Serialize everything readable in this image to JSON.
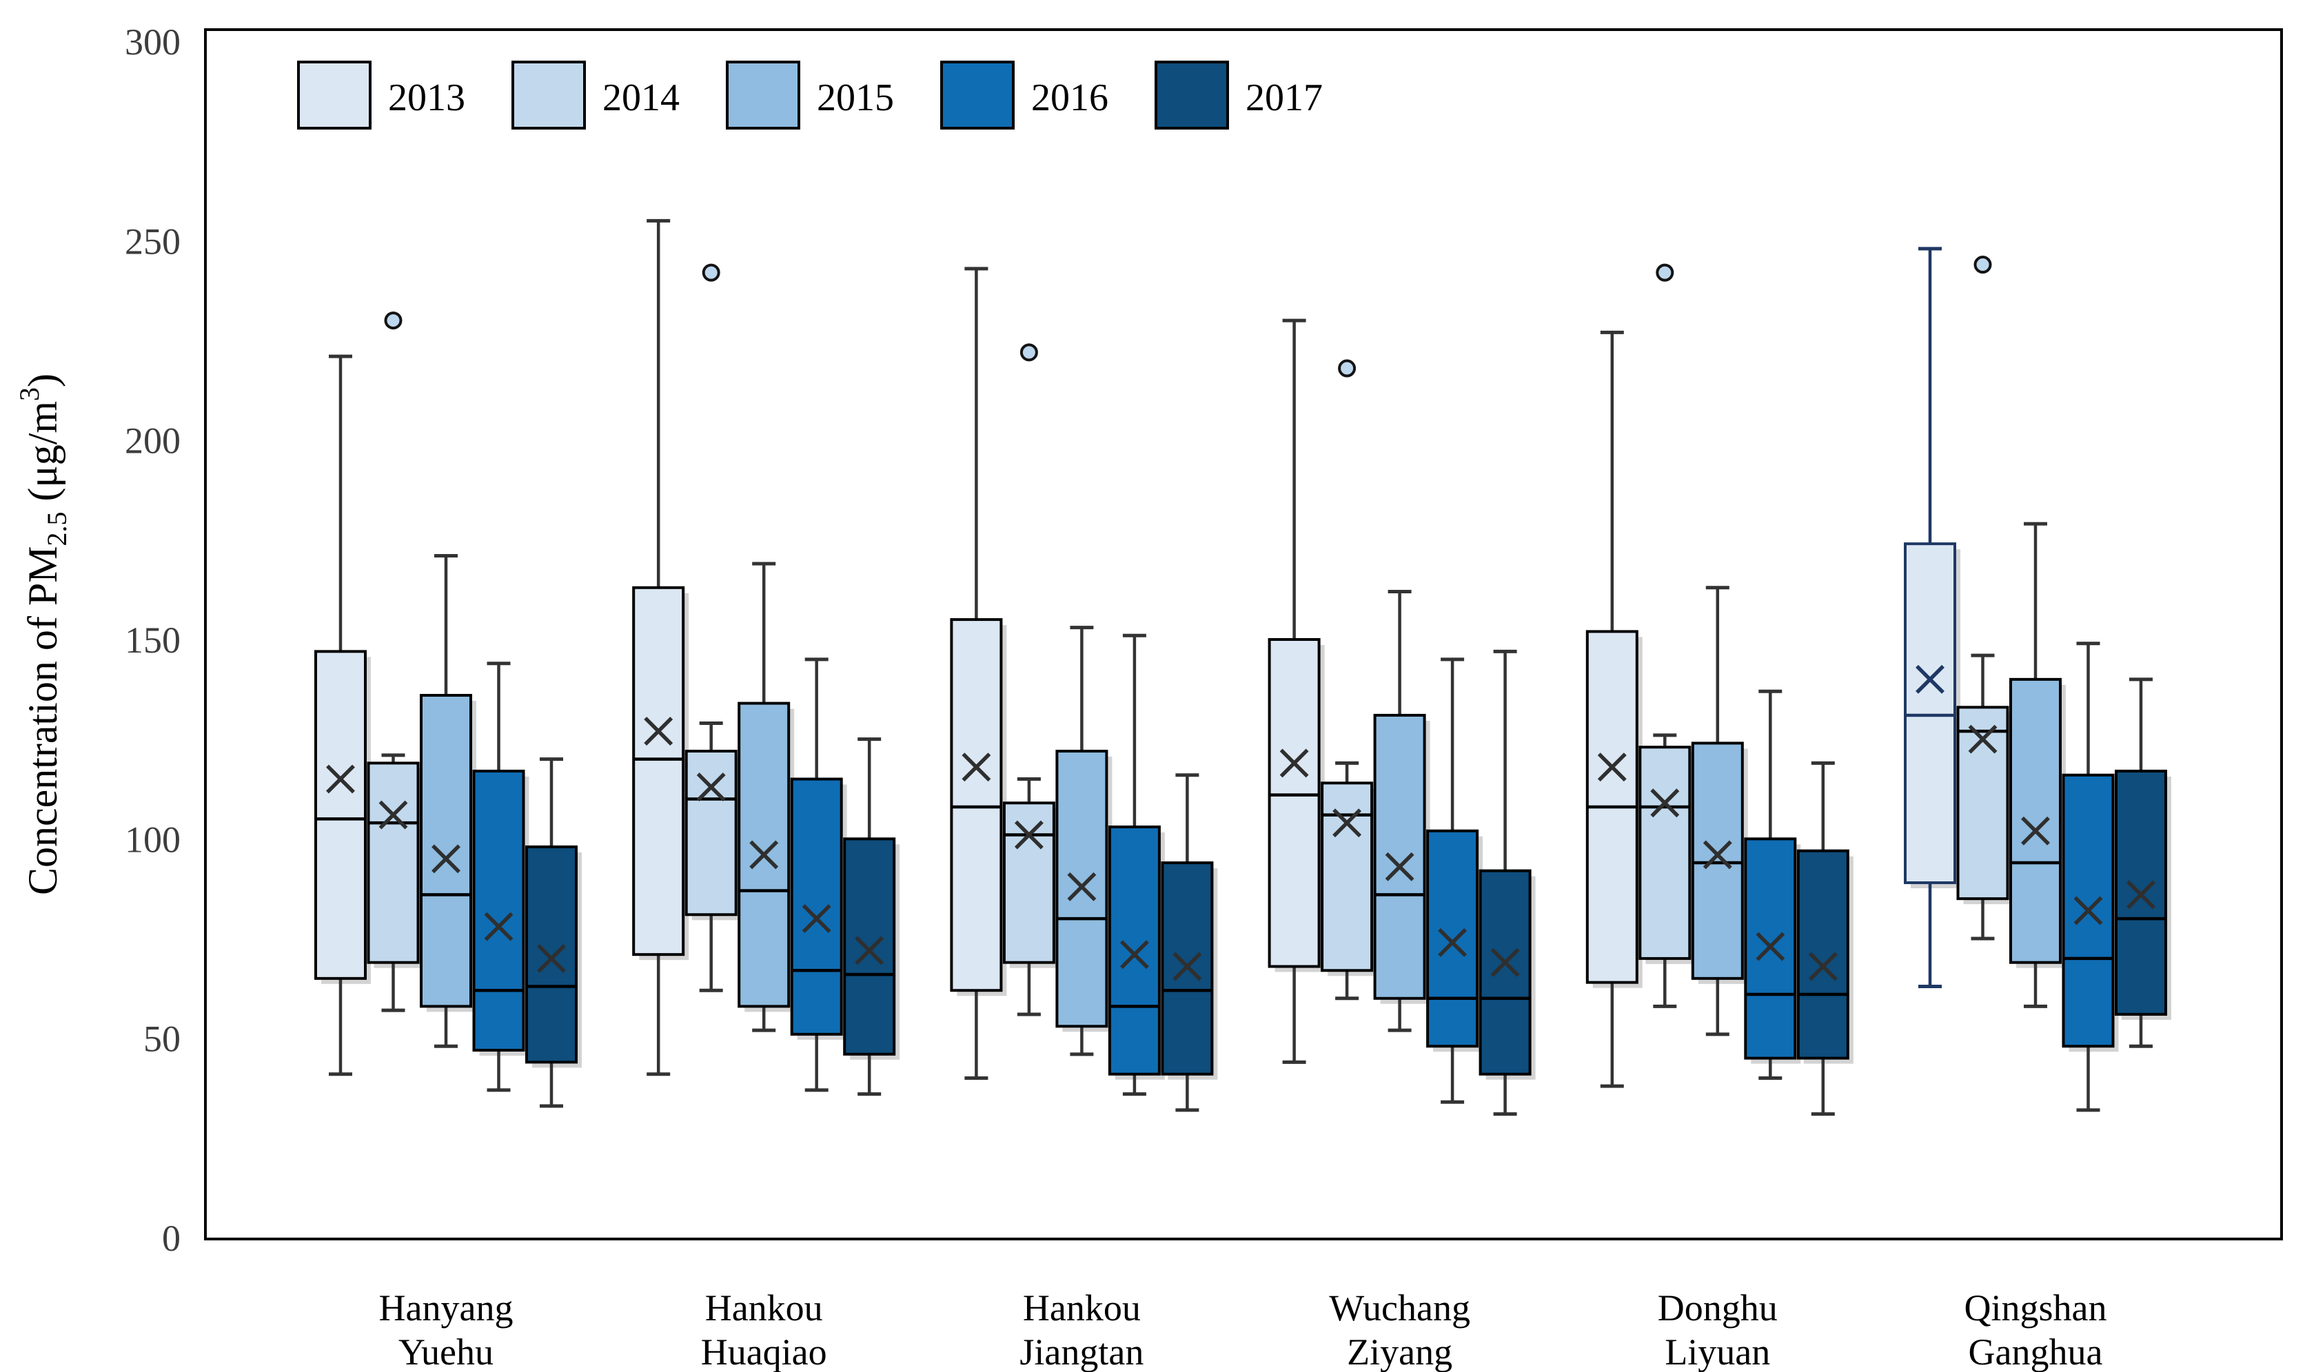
{
  "chart_data": {
    "type": "boxplot",
    "title": "",
    "ylabel": "Concentration of PM2.5 (μg/m³)",
    "ylabel_parts": {
      "prefix": "Concentration of PM",
      "sub": "2.5",
      "mid": " (μg/m",
      "sup": "3",
      "suffix": ")"
    },
    "ylim": [
      0,
      300
    ],
    "yticks": [
      0,
      50,
      100,
      150,
      200,
      250,
      300
    ],
    "grid": false,
    "frame": true,
    "legend_position": "top-left",
    "categories": [
      "Hanyang Yuehu",
      "Hankou Huaqiao",
      "Hankou Jiangtan",
      "Wuchang Ziyang",
      "Donghu Liyuan",
      "Qingshan Ganghua"
    ],
    "categories_lines": [
      [
        "Hanyang",
        "Yuehu"
      ],
      [
        "Hankou",
        "Huaqiao"
      ],
      [
        "Hankou",
        "Jiangtan"
      ],
      [
        "Wuchang",
        "Ziyang"
      ],
      [
        "Donghu",
        "Liyuan"
      ],
      [
        "Qingshan",
        "Ganghua"
      ]
    ],
    "series": [
      {
        "name": "2013",
        "color": "#dbe7f3",
        "boxes": [
          {
            "min": 41,
            "q1": 65,
            "median": 105,
            "q3": 147,
            "max": 221,
            "mean": 115,
            "outliers": []
          },
          {
            "min": 41,
            "q1": 71,
            "median": 120,
            "q3": 163,
            "max": 255,
            "mean": 127,
            "outliers": []
          },
          {
            "min": 40,
            "q1": 62,
            "median": 108,
            "q3": 155,
            "max": 243,
            "mean": 118,
            "outliers": []
          },
          {
            "min": 44,
            "q1": 68,
            "median": 111,
            "q3": 150,
            "max": 230,
            "mean": 119,
            "outliers": []
          },
          {
            "min": 38,
            "q1": 64,
            "median": 108,
            "q3": 152,
            "max": 227,
            "mean": 118,
            "outliers": []
          },
          {
            "min": 63,
            "q1": 89,
            "median": 131,
            "q3": 174,
            "max": 248,
            "mean": 140,
            "outliers": [],
            "stroke": "#1f3864"
          }
        ]
      },
      {
        "name": "2014",
        "color": "#c2d9ed",
        "boxes": [
          {
            "min": 57,
            "q1": 69,
            "median": 104,
            "q3": 119,
            "max": 121,
            "mean": 106,
            "outliers": [
              230
            ]
          },
          {
            "min": 62,
            "q1": 81,
            "median": 110,
            "q3": 122,
            "max": 129,
            "mean": 113,
            "outliers": [
              242
            ]
          },
          {
            "min": 56,
            "q1": 69,
            "median": 101,
            "q3": 109,
            "max": 115,
            "mean": 101,
            "outliers": [
              222
            ]
          },
          {
            "min": 60,
            "q1": 67,
            "median": 106,
            "q3": 114,
            "max": 119,
            "mean": 104,
            "outliers": [
              218
            ]
          },
          {
            "min": 58,
            "q1": 70,
            "median": 108,
            "q3": 123,
            "max": 126,
            "mean": 109,
            "outliers": [
              242
            ]
          },
          {
            "min": 75,
            "q1": 85,
            "median": 127,
            "q3": 133,
            "max": 146,
            "mean": 125,
            "outliers": [
              244
            ]
          }
        ]
      },
      {
        "name": "2015",
        "color": "#8fbce0",
        "boxes": [
          {
            "min": 48,
            "q1": 58,
            "median": 86,
            "q3": 136,
            "max": 171,
            "mean": 95,
            "outliers": []
          },
          {
            "min": 52,
            "q1": 58,
            "median": 87,
            "q3": 134,
            "max": 169,
            "mean": 96,
            "outliers": []
          },
          {
            "min": 46,
            "q1": 53,
            "median": 80,
            "q3": 122,
            "max": 153,
            "mean": 88,
            "outliers": []
          },
          {
            "min": 52,
            "q1": 60,
            "median": 86,
            "q3": 131,
            "max": 162,
            "mean": 93,
            "outliers": []
          },
          {
            "min": 51,
            "q1": 65,
            "median": 94,
            "q3": 124,
            "max": 163,
            "mean": 96,
            "outliers": []
          },
          {
            "min": 58,
            "q1": 69,
            "median": 94,
            "q3": 140,
            "max": 179,
            "mean": 102,
            "outliers": []
          }
        ]
      },
      {
        "name": "2016",
        "color": "#0f6db4",
        "boxes": [
          {
            "min": 37,
            "q1": 47,
            "median": 62,
            "q3": 117,
            "max": 144,
            "mean": 78,
            "outliers": []
          },
          {
            "min": 37,
            "q1": 51,
            "median": 67,
            "q3": 115,
            "max": 145,
            "mean": 80,
            "outliers": []
          },
          {
            "min": 36,
            "q1": 41,
            "median": 58,
            "q3": 103,
            "max": 151,
            "mean": 71,
            "outliers": []
          },
          {
            "min": 34,
            "q1": 48,
            "median": 60,
            "q3": 102,
            "max": 145,
            "mean": 74,
            "outliers": []
          },
          {
            "min": 40,
            "q1": 45,
            "median": 61,
            "q3": 100,
            "max": 137,
            "mean": 73,
            "outliers": []
          },
          {
            "min": 32,
            "q1": 48,
            "median": 70,
            "q3": 116,
            "max": 149,
            "mean": 82,
            "outliers": []
          }
        ]
      },
      {
        "name": "2017",
        "color": "#0e4d7c",
        "boxes": [
          {
            "min": 33,
            "q1": 44,
            "median": 63,
            "q3": 98,
            "max": 120,
            "mean": 70,
            "outliers": []
          },
          {
            "min": 36,
            "q1": 46,
            "median": 66,
            "q3": 100,
            "max": 125,
            "mean": 72,
            "outliers": []
          },
          {
            "min": 32,
            "q1": 41,
            "median": 62,
            "q3": 94,
            "max": 116,
            "mean": 68,
            "outliers": []
          },
          {
            "min": 31,
            "q1": 41,
            "median": 60,
            "q3": 92,
            "max": 147,
            "mean": 69,
            "outliers": []
          },
          {
            "min": 31,
            "q1": 45,
            "median": 61,
            "q3": 97,
            "max": 119,
            "mean": 68,
            "outliers": []
          },
          {
            "min": 48,
            "q1": 56,
            "median": 80,
            "q3": 117,
            "max": 140,
            "mean": 86,
            "outliers": []
          }
        ]
      }
    ],
    "style": {
      "box_border": "#000000",
      "whisker_color": "#333333",
      "median_color": "#000000",
      "mean_marker": "x",
      "mean_color": "#2f2f2f",
      "outlier_fill": "#bdd7ee",
      "outlier_stroke": "#141414",
      "tick_label_color": "#3d3d3d",
      "shadow_color": "#9e9e9e",
      "background": "#ffffff"
    }
  },
  "legend": {
    "items": [
      {
        "label": "2013",
        "color": "#dbe7f3"
      },
      {
        "label": "2014",
        "color": "#c2d9ed"
      },
      {
        "label": "2015",
        "color": "#8fbce0"
      },
      {
        "label": "2016",
        "color": "#0f6db4"
      },
      {
        "label": "2017",
        "color": "#0e4d7c"
      }
    ]
  }
}
